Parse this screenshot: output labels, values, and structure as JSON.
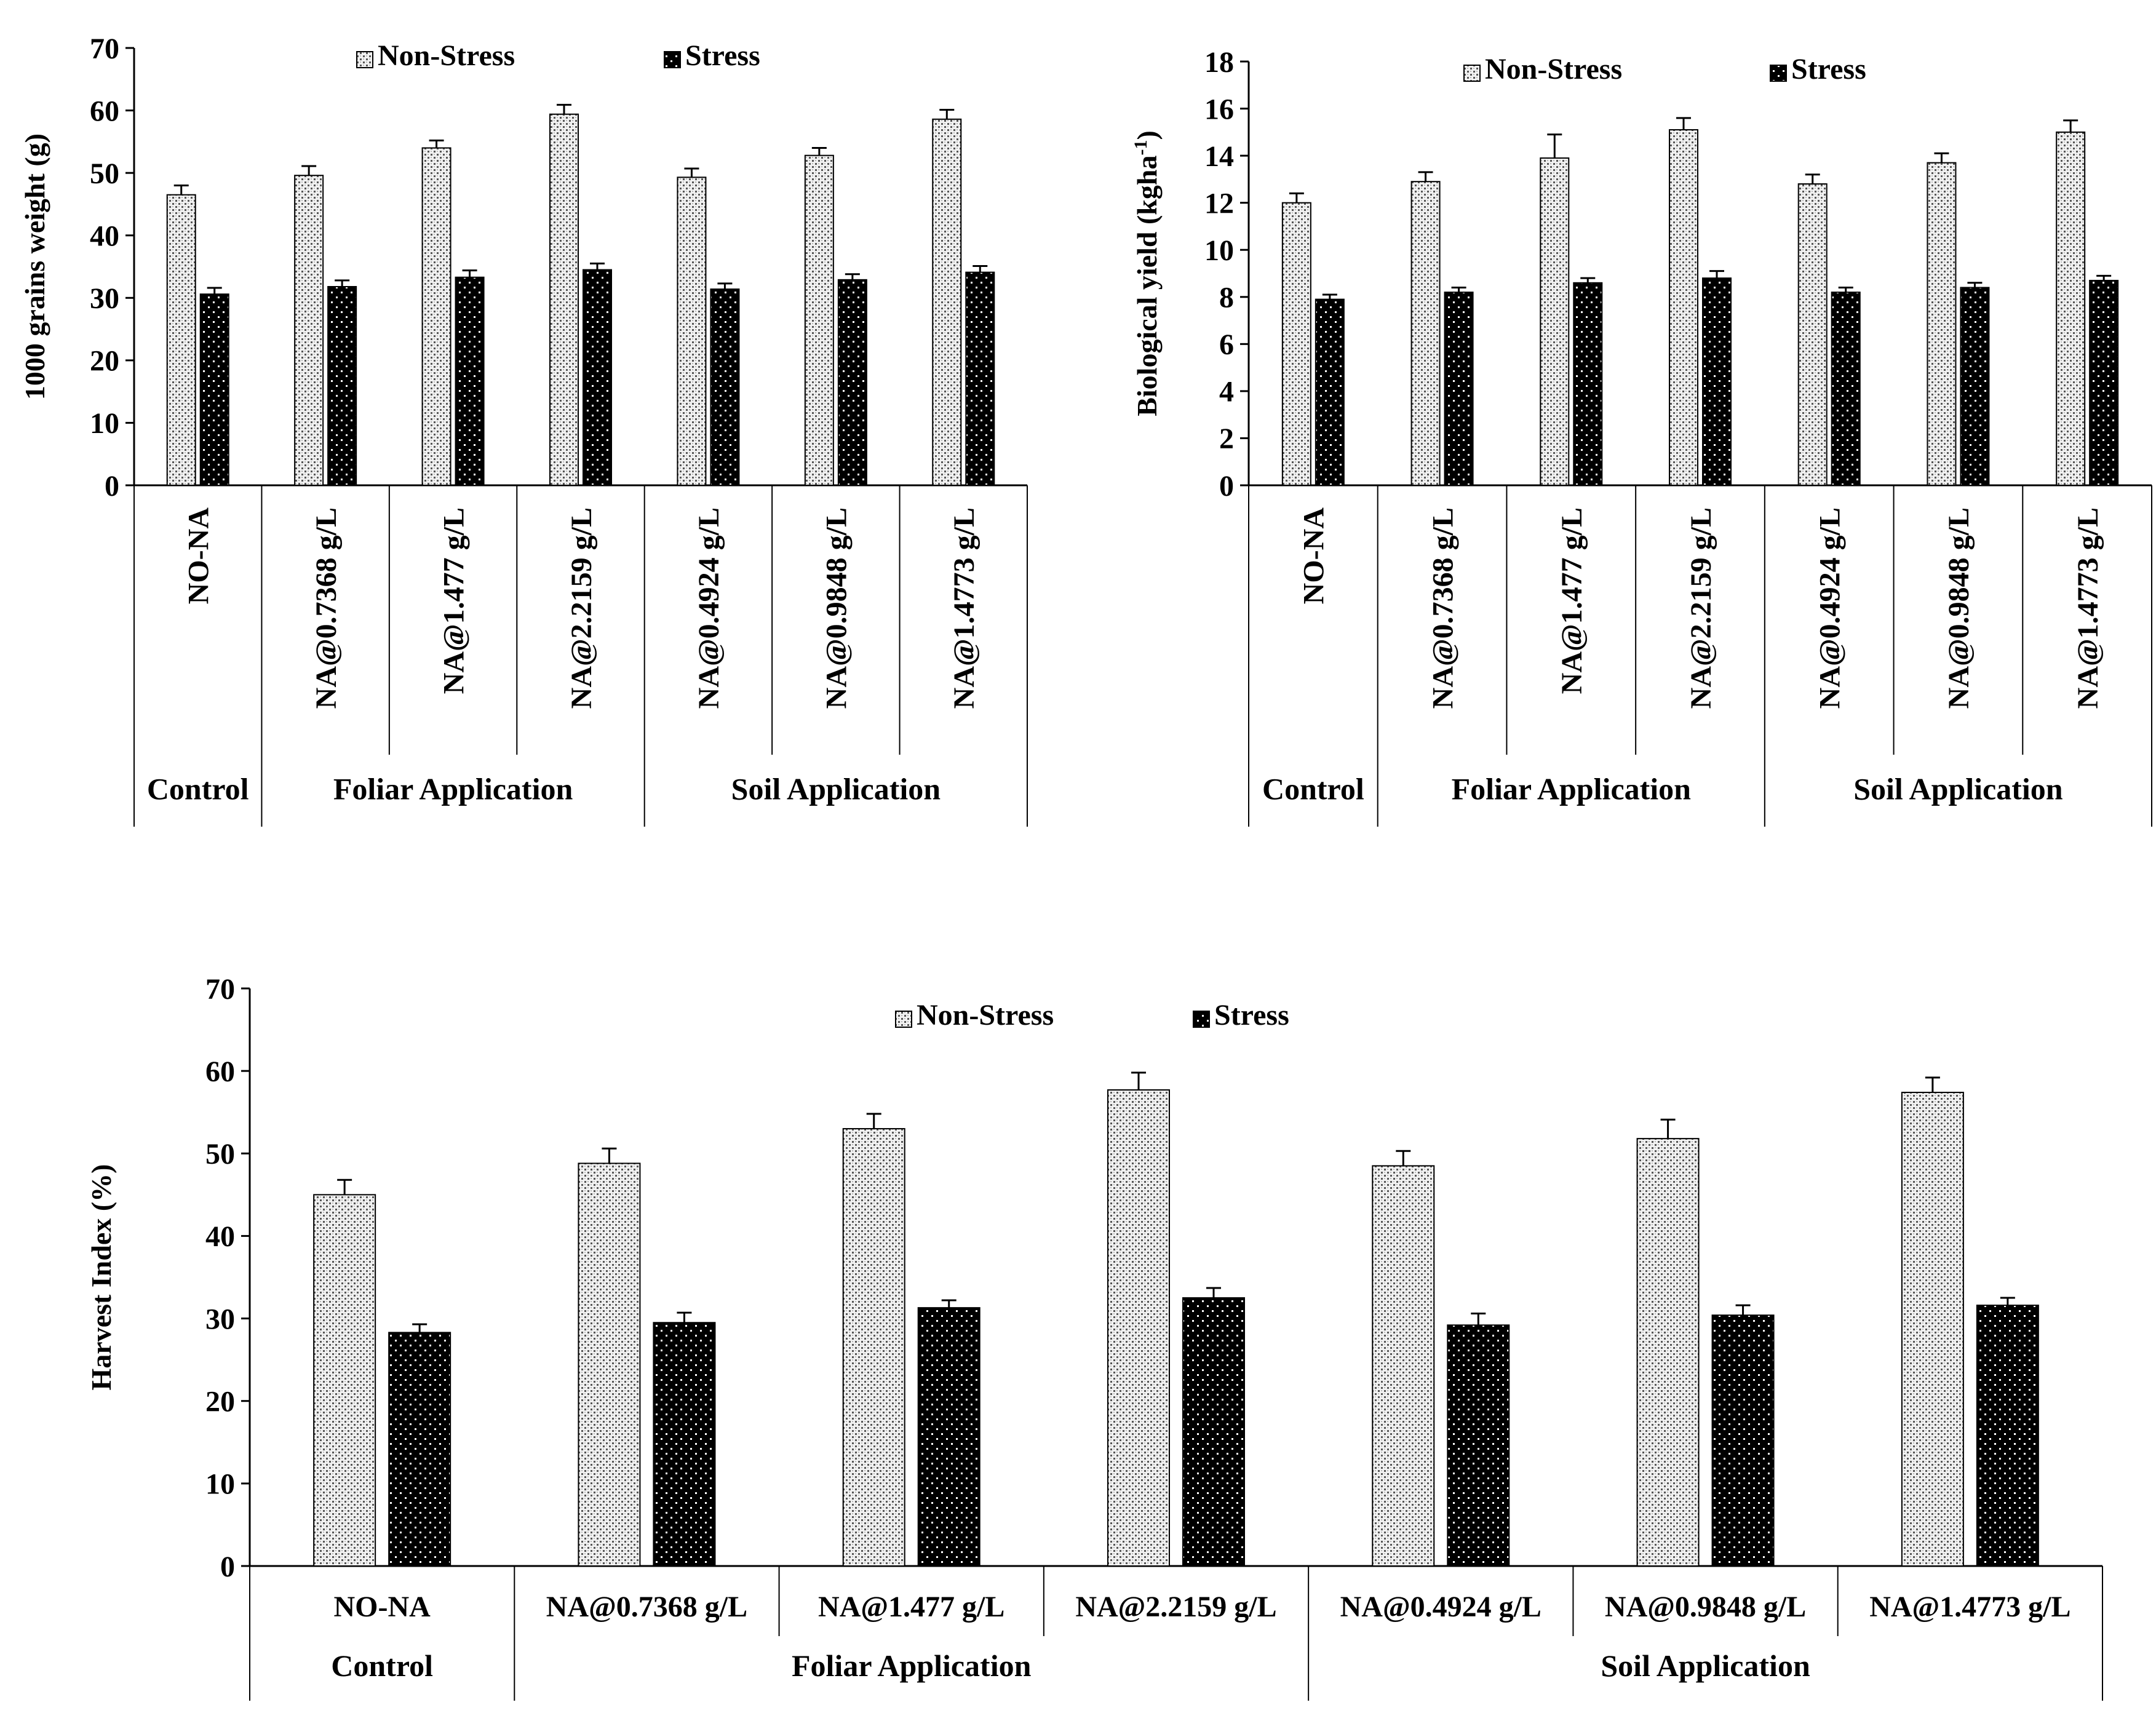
{
  "chart_data": [
    {
      "id": "chart-a",
      "type": "bar",
      "ylabel": "1000 grains weight (g)",
      "ylim": [
        0,
        70
      ],
      "ytick_step": 10,
      "categories": [
        "NO-NA",
        "NA@0.7368 g/L",
        "NA@1.477 g/L",
        "NA@2.2159 g/L",
        "NA@0.4924 g/L",
        "NA@0.9848 g/L",
        "NA@1.4773 g/L"
      ],
      "groups": [
        {
          "label": "Control",
          "count": 1
        },
        {
          "label": "Foliar Application",
          "count": 3
        },
        {
          "label": "Soil Application",
          "count": 3
        }
      ],
      "series": [
        {
          "name": "Non-Stress",
          "values": [
            46.5,
            49.6,
            54.0,
            59.4,
            49.3,
            52.8,
            58.6
          ],
          "errors": [
            1.5,
            1.5,
            1.2,
            1.5,
            1.4,
            1.2,
            1.5
          ]
        },
        {
          "name": "Stress",
          "values": [
            30.6,
            31.8,
            33.3,
            34.5,
            31.4,
            32.9,
            34.1
          ],
          "errors": [
            1.0,
            1.0,
            1.1,
            1.0,
            0.9,
            0.9,
            1.0
          ]
        }
      ],
      "legend_position": "top"
    },
    {
      "id": "chart-b",
      "type": "bar",
      "ylabel": "Biological yield (kgha",
      "ylabel_sup": "-1",
      "ylabel_end": ")",
      "ylim": [
        0,
        18
      ],
      "ytick_step": 2,
      "categories": [
        "NO-NA",
        "NA@0.7368 g/L",
        "NA@1.477 g/L",
        "NA@2.2159 g/L",
        "NA@0.4924 g/L",
        "NA@0.9848 g/L",
        "NA@1.4773 g/L"
      ],
      "groups": [
        {
          "label": "Control",
          "count": 1
        },
        {
          "label": "Foliar Application",
          "count": 3
        },
        {
          "label": "Soil Application",
          "count": 3
        }
      ],
      "series": [
        {
          "name": "Non-Stress",
          "values": [
            12.0,
            12.9,
            13.9,
            15.1,
            12.8,
            13.7,
            15.0
          ],
          "errors": [
            0.4,
            0.4,
            1.0,
            0.5,
            0.4,
            0.4,
            0.5
          ]
        },
        {
          "name": "Stress",
          "values": [
            7.9,
            8.2,
            8.6,
            8.8,
            8.2,
            8.4,
            8.7
          ],
          "errors": [
            0.2,
            0.2,
            0.2,
            0.3,
            0.2,
            0.2,
            0.2
          ]
        }
      ],
      "legend_position": "top"
    },
    {
      "id": "chart-c",
      "type": "bar",
      "ylabel": "Harvest Index (%)",
      "ylim": [
        0,
        70
      ],
      "ytick_step": 10,
      "categories": [
        "NO-NA",
        "NA@0.7368 g/L",
        "NA@1.477 g/L",
        "NA@2.2159 g/L",
        "NA@0.4924 g/L",
        "NA@0.9848 g/L",
        "NA@1.4773 g/L"
      ],
      "groups": [
        {
          "label": "Control",
          "count": 1
        },
        {
          "label": "Foliar Application",
          "count": 3
        },
        {
          "label": "Soil Application",
          "count": 3
        }
      ],
      "series": [
        {
          "name": "Non-Stress",
          "values": [
            45.0,
            48.8,
            53.0,
            57.7,
            48.5,
            51.8,
            57.4
          ],
          "errors": [
            1.8,
            1.8,
            1.8,
            2.1,
            1.8,
            2.3,
            1.8
          ]
        },
        {
          "name": "Stress",
          "values": [
            28.3,
            29.5,
            31.3,
            32.5,
            29.2,
            30.4,
            31.6
          ],
          "errors": [
            1.0,
            1.2,
            0.9,
            1.2,
            1.4,
            1.2,
            0.9
          ]
        }
      ],
      "legend_position": "top"
    }
  ]
}
